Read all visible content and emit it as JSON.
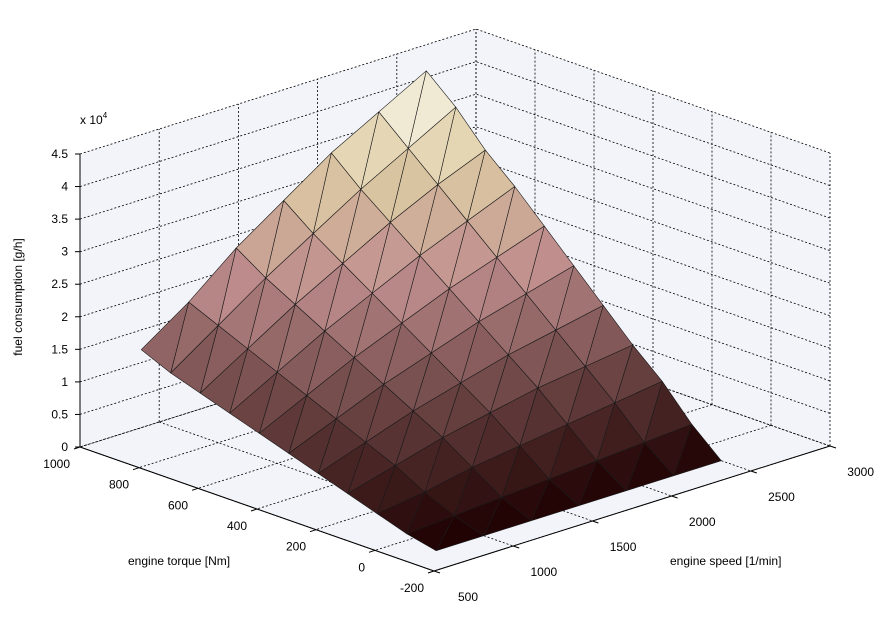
{
  "chart_data": {
    "type": "surface",
    "colormap": "pink",
    "x_axis": {
      "label": "engine speed [1/min]",
      "lim": [
        500,
        3000
      ],
      "ticks": [
        "500",
        "1000",
        "1500",
        "2000",
        "2500",
        "3000"
      ]
    },
    "y_axis": {
      "label": "engine torque [Nm]",
      "lim": [
        -200,
        1000
      ],
      "ticks": [
        "-200",
        "0",
        "200",
        "400",
        "600",
        "800",
        "1000"
      ]
    },
    "z_axis": {
      "label": "fuel consumption [g/h]",
      "lim": [
        0,
        45000
      ],
      "ticks": [
        "0",
        "0.5",
        "1",
        "1.5",
        "2",
        "2.5",
        "3",
        "3.5",
        "4",
        "4.5"
      ],
      "multiplier_base": "x 10",
      "multiplier_exp": "4"
    },
    "grid": true,
    "surface": {
      "speed": [
        700,
        1000,
        1300,
        1600,
        1900,
        2200,
        2500
      ],
      "torque": [
        -100,
        0,
        100,
        200,
        300,
        400,
        500,
        600,
        700,
        800,
        900
      ],
      "fuel": [
        [
          0,
          0,
          0,
          0,
          0,
          0,
          0
        ],
        [
          1000,
          1500,
          2000,
          2500,
          3000,
          3500,
          4000
        ],
        [
          2500,
          3500,
          5000,
          6000,
          7000,
          8000,
          9000
        ],
        [
          4000,
          6000,
          8000,
          9500,
          11000,
          12000,
          13000
        ],
        [
          5500,
          8000,
          10500,
          12500,
          14500,
          16000,
          17500
        ],
        [
          7000,
          10000,
          13000,
          15500,
          18000,
          20000,
          22000
        ],
        [
          8500,
          12000,
          15500,
          18500,
          21500,
          24000,
          26500
        ],
        [
          10000,
          14000,
          18000,
          21500,
          25000,
          28000,
          31000
        ],
        [
          11500,
          16000,
          20500,
          24500,
          28500,
          32000,
          35000
        ],
        [
          13000,
          18000,
          23000,
          27500,
          32000,
          36000,
          40000
        ],
        [
          15000,
          20000,
          26000,
          31000,
          36000,
          40000,
          44000
        ]
      ]
    }
  }
}
